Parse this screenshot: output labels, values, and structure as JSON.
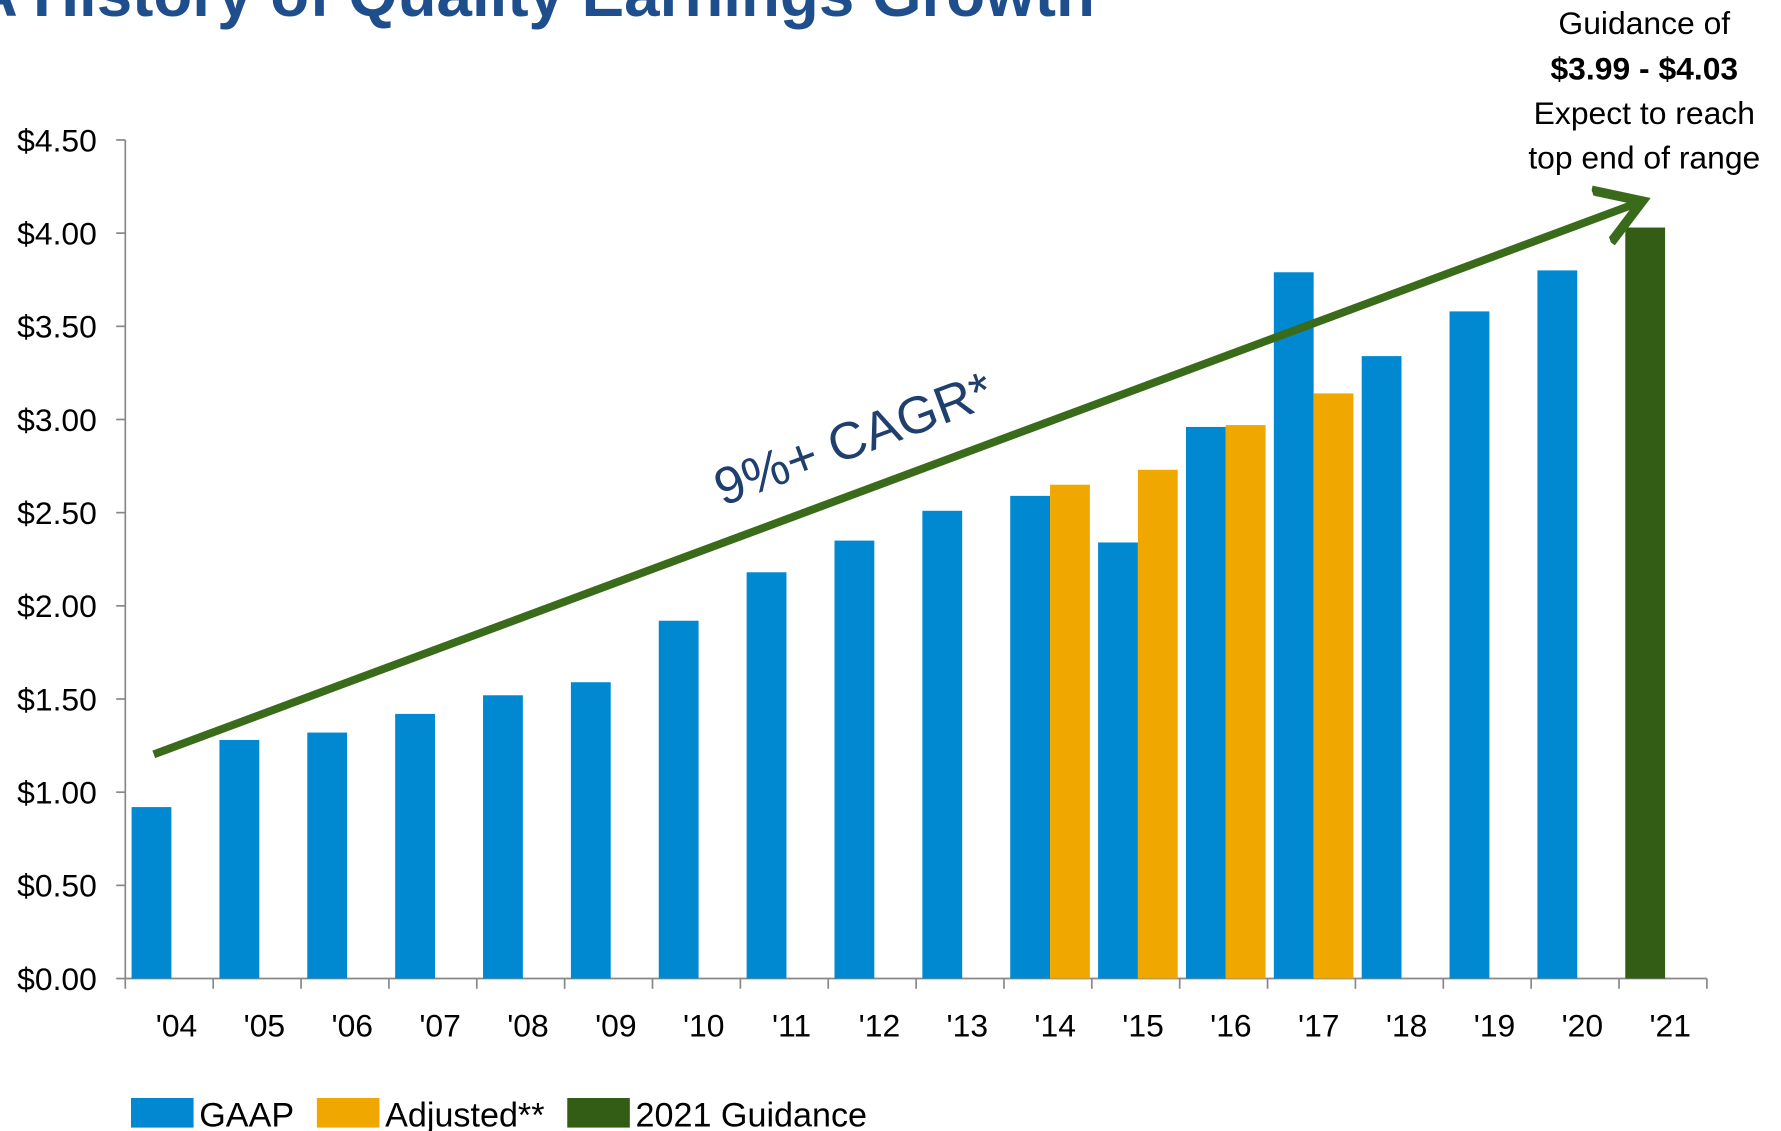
{
  "chart_data": {
    "type": "bar",
    "title": "A History of Quality Earnings Growth",
    "categories": [
      "'04",
      "'05",
      "'06",
      "'07",
      "'08",
      "'09",
      "'10",
      "'11",
      "'12",
      "'13",
      "'14",
      "'15",
      "'16",
      "'17",
      "'18",
      "'19",
      "'20",
      "'21"
    ],
    "series": [
      {
        "name": "GAAP",
        "color": "#0088d1",
        "values": [
          0.92,
          1.28,
          1.32,
          1.42,
          1.52,
          1.59,
          1.92,
          2.18,
          2.35,
          2.51,
          2.59,
          2.34,
          2.96,
          3.79,
          3.34,
          3.58,
          3.8,
          null
        ]
      },
      {
        "name": "Adjusted**",
        "color": "#f0a800",
        "values": [
          null,
          null,
          null,
          null,
          null,
          null,
          null,
          null,
          null,
          null,
          2.65,
          2.73,
          2.97,
          3.14,
          null,
          null,
          null,
          null
        ]
      },
      {
        "name": "2021 Guidance",
        "color": "#335c14",
        "values": [
          null,
          null,
          null,
          null,
          null,
          null,
          null,
          null,
          null,
          null,
          null,
          null,
          null,
          null,
          null,
          null,
          null,
          4.03
        ]
      }
    ],
    "ylim": [
      0,
      4.5
    ],
    "yticks": [
      {
        "value": 0,
        "label": "$0.00"
      },
      {
        "value": 0.5,
        "label": "$0.50"
      },
      {
        "value": 1,
        "label": "$1.00"
      },
      {
        "value": 1.5,
        "label": "$1.50"
      },
      {
        "value": 2,
        "label": "$2.00"
      },
      {
        "value": 2.5,
        "label": "$2.50"
      },
      {
        "value": 3,
        "label": "$3.00"
      },
      {
        "value": 3.5,
        "label": "$3.50"
      },
      {
        "value": 4,
        "label": "$4.00"
      },
      {
        "value": 4.5,
        "label": "$4.50"
      }
    ],
    "annotations": {
      "trend": "9%+ CAGR*",
      "guidance": [
        "Guidance of",
        "$3.99 - $4.03",
        "Expect to reach",
        "top end of range"
      ]
    },
    "legend": "bottom-left"
  }
}
